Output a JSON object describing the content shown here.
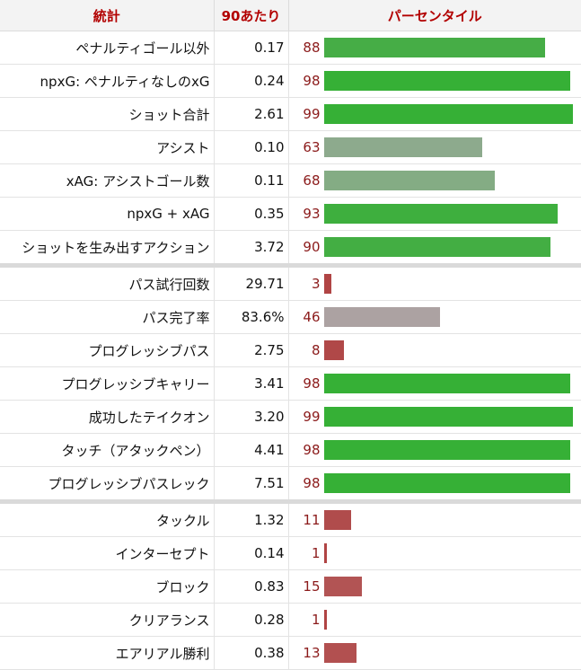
{
  "chart_data": {
    "type": "table",
    "headers": {
      "stat": "統計",
      "per90": "90あたり",
      "percentile": "パーセンタイル"
    },
    "groups": [
      {
        "rows": [
          {
            "stat": "ペナルティゴール以外",
            "value": "0.17",
            "percentile": 88,
            "color": "#46ad46"
          },
          {
            "stat": "npxG: ペナルティなしのxG",
            "value": "0.24",
            "percentile": 98,
            "color": "#36b036"
          },
          {
            "stat": "ショット合計",
            "value": "2.61",
            "percentile": 99,
            "color": "#36b036"
          },
          {
            "stat": "アシスト",
            "value": "0.10",
            "percentile": 63,
            "color": "#8daa8d"
          },
          {
            "stat": "xAG: アシストゴール数",
            "value": "0.11",
            "percentile": 68,
            "color": "#84ac84"
          },
          {
            "stat": "npxG + xAG",
            "value": "0.35",
            "percentile": 93,
            "color": "#3eaf3e"
          },
          {
            "stat": "ショットを生み出すアクション",
            "value": "3.72",
            "percentile": 90,
            "color": "#43ae43"
          }
        ]
      },
      {
        "rows": [
          {
            "stat": "パス試行回数",
            "value": "29.71",
            "percentile": 3,
            "color": "#b04444"
          },
          {
            "stat": "パス完了率",
            "value": "83.6%",
            "percentile": 46,
            "color": "#aca2a2"
          },
          {
            "stat": "プログレッシブパス",
            "value": "2.75",
            "percentile": 8,
            "color": "#b04848"
          },
          {
            "stat": "プログレッシブキャリー",
            "value": "3.41",
            "percentile": 98,
            "color": "#36b036"
          },
          {
            "stat": "成功したテイクオン",
            "value": "3.20",
            "percentile": 99,
            "color": "#36b036"
          },
          {
            "stat": "タッチ（アタックペン）",
            "value": "4.41",
            "percentile": 98,
            "color": "#36b036"
          },
          {
            "stat": "プログレッシブパスレック",
            "value": "7.51",
            "percentile": 98,
            "color": "#36b036"
          }
        ]
      },
      {
        "rows": [
          {
            "stat": "タックル",
            "value": "1.32",
            "percentile": 11,
            "color": "#b04c4c"
          },
          {
            "stat": "インターセプト",
            "value": "0.14",
            "percentile": 1,
            "color": "#b04444"
          },
          {
            "stat": "ブロック",
            "value": "0.83",
            "percentile": 15,
            "color": "#b25454"
          },
          {
            "stat": "クリアランス",
            "value": "0.28",
            "percentile": 1,
            "color": "#b04444"
          },
          {
            "stat": "エアリアル勝利",
            "value": "0.38",
            "percentile": 13,
            "color": "#b25050"
          }
        ]
      }
    ],
    "percentile_range": [
      0,
      100
    ]
  }
}
